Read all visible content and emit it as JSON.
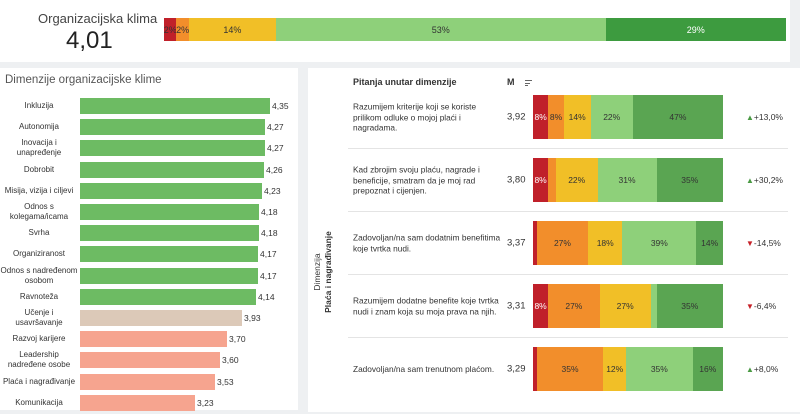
{
  "colors": {
    "dark_red": "#c0202a",
    "orange": "#f28e2b",
    "yellow": "#f1bf27",
    "light_green": "#8ed07a",
    "dark_green": "#3d9b3f",
    "bar_green": "#6dbb63",
    "bar_beige": "#dcc9b8",
    "bar_salmon": "#f6a48f"
  },
  "header": {
    "title": "Organizacijska klima",
    "score": "4,01",
    "segments": [
      {
        "label": "2%",
        "value": 2,
        "color": "#c0202a"
      },
      {
        "label": "2%",
        "value": 2,
        "color": "#f28e2b"
      },
      {
        "label": "14%",
        "value": 14,
        "color": "#f1bf27"
      },
      {
        "label": "53%",
        "value": 53,
        "color": "#8ed07a"
      },
      {
        "label": "29%",
        "value": 29,
        "color": "#3d9b3f"
      }
    ]
  },
  "dimensions_panel": {
    "title": "Dimenzije organizacijske klime",
    "items": [
      {
        "name": "Inkluzija",
        "value": 4.35,
        "label": "4,35",
        "color": "#6dbb63"
      },
      {
        "name": "Autonomija",
        "value": 4.27,
        "label": "4,27",
        "color": "#6dbb63"
      },
      {
        "name": "Inovacija i unapređenje",
        "value": 4.27,
        "label": "4,27",
        "color": "#6dbb63"
      },
      {
        "name": "Dobrobit",
        "value": 4.26,
        "label": "4,26",
        "color": "#6dbb63"
      },
      {
        "name": "Misija, vizija i ciljevi",
        "value": 4.23,
        "label": "4,23",
        "color": "#6dbb63"
      },
      {
        "name": "Odnos s kolegama/icama",
        "value": 4.18,
        "label": "4,18",
        "color": "#6dbb63"
      },
      {
        "name": "Svrha",
        "value": 4.18,
        "label": "4,18",
        "color": "#6dbb63"
      },
      {
        "name": "Organiziranost",
        "value": 4.17,
        "label": "4,17",
        "color": "#6dbb63"
      },
      {
        "name": "Odnos s nadređenom osobom",
        "value": 4.17,
        "label": "4,17",
        "color": "#6dbb63"
      },
      {
        "name": "Ravnoteža",
        "value": 4.14,
        "label": "4,14",
        "color": "#6dbb63"
      },
      {
        "name": "Učenje i usavršavanje",
        "value": 3.93,
        "label": "3,93",
        "color": "#dcc9b8"
      },
      {
        "name": "Razvoj karijere",
        "value": 3.7,
        "label": "3,70",
        "color": "#f6a48f"
      },
      {
        "name": "Leadership nadređene osobe",
        "value": 3.6,
        "label": "3,60",
        "color": "#f6a48f"
      },
      {
        "name": "Plaća i nagrađivanje",
        "value": 3.53,
        "label": "3,53",
        "color": "#f6a48f"
      },
      {
        "name": "Komunikacija",
        "value": 3.23,
        "label": "3,23",
        "color": "#f6a48f"
      }
    ]
  },
  "questions_panel": {
    "col_question": "Pitanja unutar dimenzije",
    "col_mean": "M",
    "side_label_1": "Dimenzija",
    "side_label_2": "Plaća i nagrađivanje",
    "questions": [
      {
        "text": "Razumijem kriterije koji se koriste prilikom odluke o mojoj plaći i nagradama.",
        "mean": "3,92",
        "change": "+13,0%",
        "direction": "up",
        "segments": [
          {
            "label": "8%",
            "value": 8,
            "color": "#c0202a"
          },
          {
            "label": "8%",
            "value": 8,
            "color": "#f28e2b"
          },
          {
            "label": "14%",
            "value": 14,
            "color": "#f1bf27"
          },
          {
            "label": "22%",
            "value": 22,
            "color": "#8ed07a"
          },
          {
            "label": "47%",
            "value": 47,
            "color": "#5aa552"
          }
        ]
      },
      {
        "text": "Kad zbrojim svoju plaću, nagrade i beneficije, smatram da je moj rad prepoznat i cijenjen.",
        "mean": "3,80",
        "change": "+30,2%",
        "direction": "up",
        "segments": [
          {
            "label": "8%",
            "value": 8,
            "color": "#c0202a"
          },
          {
            "label": "",
            "value": 4,
            "color": "#f28e2b"
          },
          {
            "label": "22%",
            "value": 22,
            "color": "#f1bf27"
          },
          {
            "label": "31%",
            "value": 31,
            "color": "#8ed07a"
          },
          {
            "label": "35%",
            "value": 35,
            "color": "#5aa552"
          }
        ]
      },
      {
        "text": "Zadovoljan/na sam dodatnim benefitima koje tvrtka nudi.",
        "mean": "3,37",
        "change": "-14,5%",
        "direction": "down",
        "segments": [
          {
            "label": "",
            "value": 2,
            "color": "#c0202a"
          },
          {
            "label": "27%",
            "value": 27,
            "color": "#f28e2b"
          },
          {
            "label": "18%",
            "value": 18,
            "color": "#f1bf27"
          },
          {
            "label": "39%",
            "value": 39,
            "color": "#8ed07a"
          },
          {
            "label": "14%",
            "value": 14,
            "color": "#5aa552"
          }
        ]
      },
      {
        "text": "Razumijem dodatne benefite koje tvrtka nudi i znam koja su moja prava na njih.",
        "mean": "3,31",
        "change": "-6,4%",
        "direction": "down",
        "segments": [
          {
            "label": "8%",
            "value": 8,
            "color": "#c0202a"
          },
          {
            "label": "27%",
            "value": 27,
            "color": "#f28e2b"
          },
          {
            "label": "27%",
            "value": 27,
            "color": "#f1bf27"
          },
          {
            "label": "",
            "value": 3,
            "color": "#8ed07a"
          },
          {
            "label": "35%",
            "value": 35,
            "color": "#5aa552"
          }
        ]
      },
      {
        "text": "Zadovoljan/na sam trenutnom plaćom.",
        "mean": "3,29",
        "change": "+8,0%",
        "direction": "up",
        "segments": [
          {
            "label": "",
            "value": 2,
            "color": "#c0202a"
          },
          {
            "label": "35%",
            "value": 35,
            "color": "#f28e2b"
          },
          {
            "label": "12%",
            "value": 12,
            "color": "#f1bf27"
          },
          {
            "label": "35%",
            "value": 35,
            "color": "#8ed07a"
          },
          {
            "label": "16%",
            "value": 16,
            "color": "#5aa552"
          }
        ]
      }
    ]
  }
}
